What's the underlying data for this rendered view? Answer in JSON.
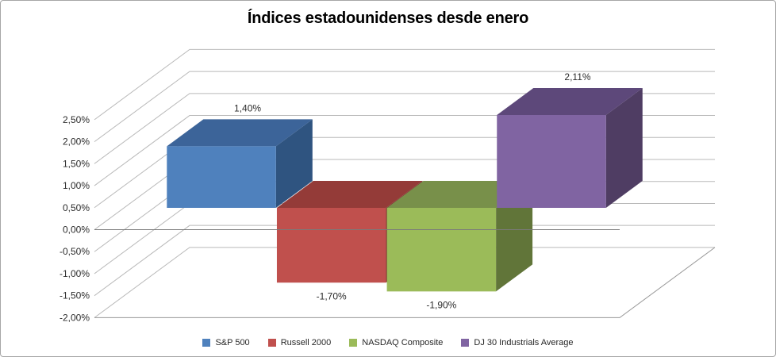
{
  "title": "Índices estadounidenses desde enero",
  "chart_data": {
    "type": "bar",
    "projection": "3d",
    "title": "Índices estadounidenses desde enero",
    "categories": [
      "S&P 500",
      "Russell 2000",
      "NASDAQ Composite",
      "DJ 30 Industrials Average"
    ],
    "values": [
      1.4,
      -1.7,
      -1.9,
      2.11
    ],
    "data_labels": [
      "1,40%",
      "-1,70%",
      "-1,90%",
      "2,11%"
    ],
    "value_unit": "%",
    "ylim": [
      -2.0,
      2.5
    ],
    "y_axis": {
      "step": 0.5,
      "ticks": [
        {
          "value": 2.5,
          "label": "2,50%"
        },
        {
          "value": 2.0,
          "label": "2,00%"
        },
        {
          "value": 1.5,
          "label": "1,50%"
        },
        {
          "value": 1.0,
          "label": "1,00%"
        },
        {
          "value": 0.5,
          "label": "0,50%"
        },
        {
          "value": 0.0,
          "label": "0,00%"
        },
        {
          "value": -0.5,
          "label": "-0,50%"
        },
        {
          "value": -1.0,
          "label": "-1,00%"
        },
        {
          "value": -1.5,
          "label": "-1,50%"
        },
        {
          "value": -2.0,
          "label": "-2,00%"
        }
      ]
    },
    "series_colors": [
      {
        "front": "#4F81BD",
        "top": "#3C6499",
        "side": "#2F5480"
      },
      {
        "front": "#C0504D",
        "top": "#943B38",
        "side": "#7E302E"
      },
      {
        "front": "#9BBB59",
        "top": "#78904A",
        "side": "#617539"
      },
      {
        "front": "#8064A2",
        "top": "#5D487A",
        "side": "#4F3D63"
      }
    ],
    "colors": {
      "gridline": "#B9B9B9",
      "zero_line": "#7A7A7A",
      "floor_line": "#989898",
      "text": "#2b2b2b",
      "border": "#A6A6A6"
    },
    "grid": true,
    "legend_position": "bottom"
  }
}
